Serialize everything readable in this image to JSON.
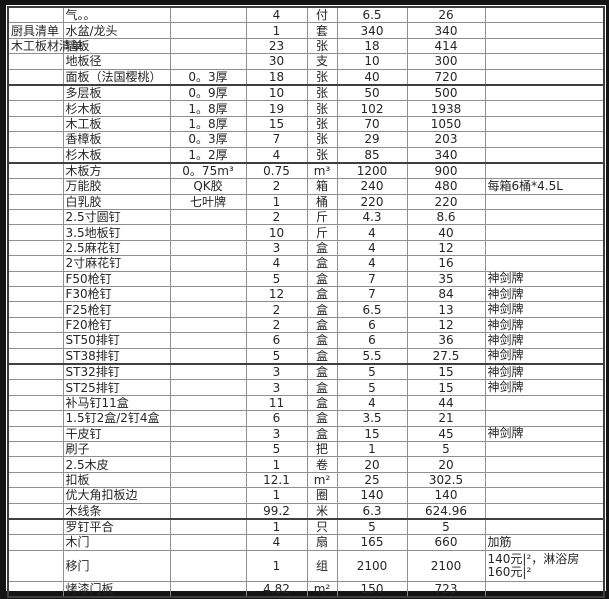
{
  "colors": {
    "frame": "#141414",
    "background": "#ffffff",
    "grid_line": "#8f8f8f",
    "section_line": "#3f3f3f",
    "text": "#262626"
  },
  "table": {
    "field_order": [
      "category",
      "name",
      "spec",
      "qty",
      "unit",
      "price",
      "total",
      "remark"
    ],
    "rows": [
      {
        "category": "",
        "name": "气。。",
        "spec": "",
        "qty": "4",
        "unit": "付",
        "price": "6.5",
        "total": "26",
        "remark": ""
      },
      {
        "category": "厨具清单",
        "name": "水盆/龙头",
        "spec": "",
        "qty": "1",
        "unit": "套",
        "price": "340",
        "total": "340",
        "remark": ""
      },
      {
        "category": "木工板材清单",
        "name": "墙板",
        "spec": "",
        "qty": "23",
        "unit": "张",
        "price": "18",
        "total": "414",
        "remark": ""
      },
      {
        "category": "",
        "name": "地板径",
        "spec": "",
        "qty": "30",
        "unit": "支",
        "price": "10",
        "total": "300",
        "remark": ""
      },
      {
        "category": "",
        "name": "面板（法国樱桃）",
        "spec": "0。3厚",
        "qty": "18",
        "unit": "张",
        "price": "40",
        "total": "720",
        "remark": "",
        "section_end": true
      },
      {
        "category": "",
        "name": "多层板",
        "spec": "0。9厚",
        "qty": "10",
        "unit": "张",
        "price": "50",
        "total": "500",
        "remark": ""
      },
      {
        "category": "",
        "name": "杉木板",
        "spec": "1。8厚",
        "qty": "19",
        "unit": "张",
        "price": "102",
        "total": "1938",
        "remark": ""
      },
      {
        "category": "",
        "name": "木工板",
        "spec": "1。8厚",
        "qty": "15",
        "unit": "张",
        "price": "70",
        "total": "1050",
        "remark": ""
      },
      {
        "category": "",
        "name": "香樟板",
        "spec": "0。3厚",
        "qty": "7",
        "unit": "张",
        "price": "29",
        "total": "203",
        "remark": ""
      },
      {
        "category": "",
        "name": "杉木板",
        "spec": "1。2厚",
        "qty": "4",
        "unit": "张",
        "price": "85",
        "total": "340",
        "remark": "",
        "section_end": true
      },
      {
        "category": "",
        "name": "木板方",
        "spec": "0。75m³",
        "qty": "0.75",
        "unit": "m³",
        "price": "1200",
        "total": "900",
        "remark": ""
      },
      {
        "category": "",
        "name": "万能胶",
        "spec": "QK胶",
        "qty": "2",
        "unit": "箱",
        "price": "240",
        "total": "480",
        "remark": "每箱6桶*4.5L"
      },
      {
        "category": "",
        "name": "白乳胶",
        "spec": "七叶牌",
        "qty": "1",
        "unit": "桶",
        "price": "220",
        "total": "220",
        "remark": ""
      },
      {
        "category": "",
        "name": "2.5寸圆钉",
        "spec": "",
        "qty": "2",
        "unit": "斤",
        "price": "4.3",
        "total": "8.6",
        "remark": ""
      },
      {
        "category": "",
        "name": "3.5地板钉",
        "spec": "",
        "qty": "10",
        "unit": "斤",
        "price": "4",
        "total": "40",
        "remark": ""
      },
      {
        "category": "",
        "name": "2.5麻花钉",
        "spec": "",
        "qty": "3",
        "unit": "盒",
        "price": "4",
        "total": "12",
        "remark": ""
      },
      {
        "category": "",
        "name": "2寸麻花钉",
        "spec": "",
        "qty": "4",
        "unit": "盒",
        "price": "4",
        "total": "16",
        "remark": ""
      },
      {
        "category": "",
        "name": "F50枪钉",
        "spec": "",
        "qty": "5",
        "unit": "盒",
        "price": "7",
        "total": "35",
        "remark": "神剑牌"
      },
      {
        "category": "",
        "name": "F30枪钉",
        "spec": "",
        "qty": "12",
        "unit": "盒",
        "price": "7",
        "total": "84",
        "remark": "神剑牌"
      },
      {
        "category": "",
        "name": "F25枪钉",
        "spec": "",
        "qty": "2",
        "unit": "盒",
        "price": "6.5",
        "total": "13",
        "remark": "神剑牌"
      },
      {
        "category": "",
        "name": "F20枪钉",
        "spec": "",
        "qty": "2",
        "unit": "盒",
        "price": "6",
        "total": "12",
        "remark": "神剑牌"
      },
      {
        "category": "",
        "name": "ST50排钉",
        "spec": "",
        "qty": "6",
        "unit": "盒",
        "price": "6",
        "total": "36",
        "remark": "神剑牌"
      },
      {
        "category": "",
        "name": "ST38排钉",
        "spec": "",
        "qty": "5",
        "unit": "盒",
        "price": "5.5",
        "total": "27.5",
        "remark": "神剑牌",
        "section_end": true
      },
      {
        "category": "",
        "name": "ST32排钉",
        "spec": "",
        "qty": "3",
        "unit": "盒",
        "price": "5",
        "total": "15",
        "remark": "神剑牌"
      },
      {
        "category": "",
        "name": "ST25排钉",
        "spec": "",
        "qty": "3",
        "unit": "盒",
        "price": "5",
        "total": "15",
        "remark": "神剑牌"
      },
      {
        "category": "",
        "name": "补马钉11盒",
        "spec": "",
        "qty": "11",
        "unit": "盒",
        "price": "4",
        "total": "44",
        "remark": ""
      },
      {
        "category": "",
        "name": "1.5钉2盒/2钉4盒",
        "spec": "",
        "qty": "6",
        "unit": "盒",
        "price": "3.5",
        "total": "21",
        "remark": ""
      },
      {
        "category": "",
        "name": "干皮钉",
        "spec": "",
        "qty": "3",
        "unit": "盒",
        "price": "15",
        "total": "45",
        "remark": "神剑牌"
      },
      {
        "category": "",
        "name": "刷子",
        "spec": "",
        "qty": "5",
        "unit": "把",
        "price": "1",
        "total": "5",
        "remark": ""
      },
      {
        "category": "",
        "name": "2.5木皮",
        "spec": "",
        "qty": "1",
        "unit": "卷",
        "price": "20",
        "total": "20",
        "remark": ""
      },
      {
        "category": "",
        "name": "扣板",
        "spec": "",
        "qty": "12.1",
        "unit": "m²",
        "price": "25",
        "total": "302.5",
        "remark": ""
      },
      {
        "category": "",
        "name": "优大角扣板边",
        "spec": "",
        "qty": "1",
        "unit": "圈",
        "price": "140",
        "total": "140",
        "remark": ""
      },
      {
        "category": "",
        "name": "木线条",
        "spec": "",
        "qty": "99.2",
        "unit": "米",
        "price": "6.3",
        "total": "624.96",
        "remark": "",
        "section_end": true
      },
      {
        "category": "",
        "name": "罗钉平合",
        "spec": "",
        "qty": "1",
        "unit": "只",
        "price": "5",
        "total": "5",
        "remark": ""
      },
      {
        "category": "",
        "name": "木门",
        "spec": "",
        "qty": "4",
        "unit": "扇",
        "price": "165",
        "total": "660",
        "remark": "加筋"
      },
      {
        "category": "",
        "name": "移门",
        "spec": "",
        "qty": "1",
        "unit": "组",
        "price": "2100",
        "total": "2100",
        "remark": "140元|²，淋浴房160元|²",
        "tall": true
      },
      {
        "category": "",
        "name": "烤漆门板",
        "spec": "",
        "qty": "4.82",
        "unit": "m²",
        "price": "150",
        "total": "723",
        "remark": ""
      }
    ]
  }
}
